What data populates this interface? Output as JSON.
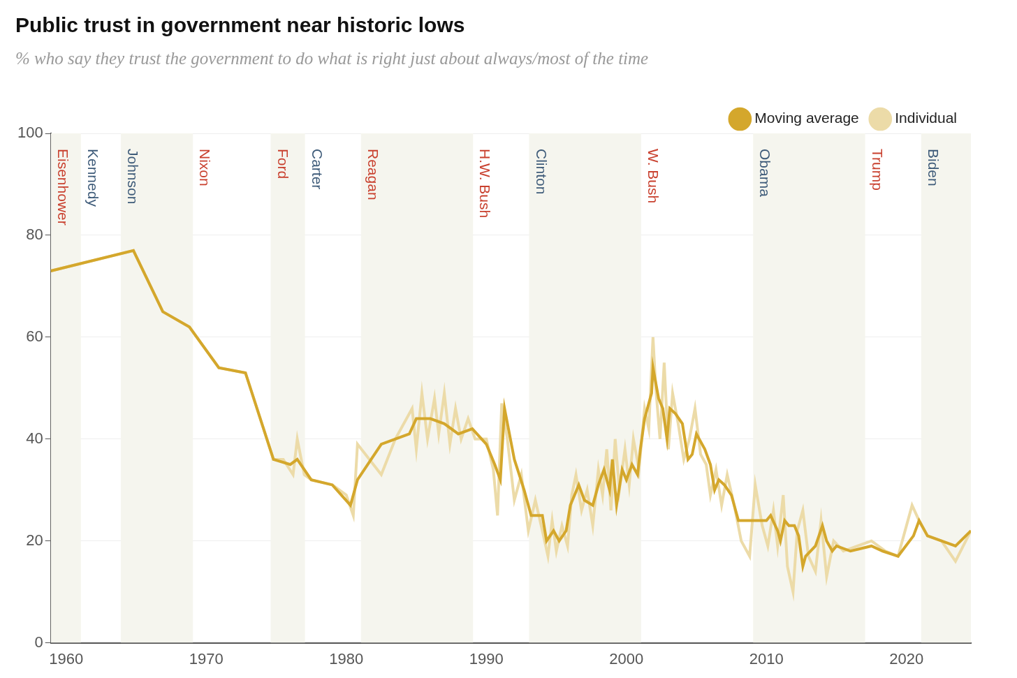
{
  "chart_data": {
    "type": "line",
    "title": "Public trust in government near historic lows",
    "subtitle": "% who say they trust the government to do what is right just about always/most of the time",
    "xlim": [
      1958.9,
      2024.6
    ],
    "xticks": [
      1960,
      1970,
      1980,
      1990,
      2000,
      2010,
      2020
    ],
    "ylim": [
      0,
      100
    ],
    "yticks": [
      0,
      20,
      40,
      60,
      80,
      100
    ],
    "grid": true,
    "legend": "top-right",
    "series": [
      {
        "name": "Moving average",
        "color": "#d4a72c",
        "x": [
          1958.9,
          1964.8,
          1966.9,
          1968.8,
          1970.9,
          1972.8,
          1974.8,
          1976.0,
          1976.5,
          1977.5,
          1979.0,
          1980.3,
          1980.8,
          1982.5,
          1984.5,
          1985.0,
          1986.0,
          1987.0,
          1988.0,
          1989.0,
          1990.0,
          1990.6,
          1991.0,
          1991.3,
          1992.0,
          1992.7,
          1993.2,
          1994.0,
          1994.3,
          1994.8,
          1995.2,
          1995.7,
          1996.0,
          1996.6,
          1997.0,
          1997.6,
          1998.0,
          1998.4,
          1998.8,
          1999.0,
          1999.3,
          1999.7,
          2000.0,
          2000.4,
          2000.8,
          2001.0,
          2001.3,
          2001.8,
          2001.9,
          2002.3,
          2002.6,
          2002.9,
          2003.1,
          2003.5,
          2004.0,
          2004.4,
          2004.7,
          2005.0,
          2005.6,
          2006.0,
          2006.3,
          2006.6,
          2007.0,
          2007.5,
          2008.0,
          2009.0,
          2010.0,
          2010.3,
          2010.8,
          2011.0,
          2011.3,
          2011.6,
          2012.0,
          2012.3,
          2012.6,
          2012.8,
          2013.5,
          2014.0,
          2014.3,
          2014.7,
          2015.0,
          2016.0,
          2017.5,
          2018.3,
          2019.4,
          2020.5,
          2020.9,
          2021.5,
          2022.5,
          2023.5,
          2024.6
        ],
        "values": [
          73,
          77,
          65,
          62,
          54,
          53,
          36,
          35,
          36,
          32,
          31,
          27,
          32,
          39,
          41,
          44,
          44,
          43,
          41,
          42,
          39,
          35,
          32,
          46,
          36,
          30,
          25,
          25,
          20,
          22,
          20,
          22,
          27,
          31,
          28,
          27,
          31,
          34,
          30,
          36,
          27,
          34,
          32,
          35,
          33,
          38,
          44,
          49,
          54,
          48,
          46,
          40,
          46,
          45,
          43,
          36,
          37,
          41,
          38,
          35,
          30,
          32,
          31,
          29,
          24,
          24,
          24,
          25,
          22,
          20,
          24,
          23,
          23,
          21,
          15,
          17,
          19,
          23,
          20,
          18,
          19,
          18,
          19,
          18,
          17,
          21,
          24,
          21,
          20,
          19,
          22
        ]
      },
      {
        "name": "Individual",
        "color": "#ecdba8",
        "x": [
          1958.9,
          1964.8,
          1966.9,
          1968.8,
          1970.9,
          1972.8,
          1974.8,
          1975.5,
          1976.2,
          1976.5,
          1977.0,
          1977.5,
          1979.0,
          1980.0,
          1980.5,
          1980.8,
          1982.5,
          1983.5,
          1984.7,
          1985.0,
          1985.4,
          1985.8,
          1986.3,
          1986.6,
          1987.0,
          1987.4,
          1987.8,
          1988.2,
          1988.7,
          1989.2,
          1990.0,
          1990.5,
          1990.8,
          1991.1,
          1991.5,
          1992.0,
          1992.5,
          1993.0,
          1993.5,
          1994.0,
          1994.4,
          1994.7,
          1995.0,
          1995.4,
          1995.8,
          1996.1,
          1996.4,
          1996.8,
          1997.2,
          1997.6,
          1998.0,
          1998.3,
          1998.6,
          1998.9,
          1999.2,
          1999.5,
          1999.9,
          2000.2,
          2000.5,
          2000.9,
          2001.3,
          2001.6,
          2001.9,
          2002.1,
          2002.4,
          2002.7,
          2003.0,
          2003.3,
          2003.7,
          2004.1,
          2004.5,
          2004.9,
          2005.3,
          2005.7,
          2006.0,
          2006.4,
          2006.8,
          2007.2,
          2007.7,
          2008.2,
          2008.8,
          2009.2,
          2009.7,
          2010.1,
          2010.5,
          2010.8,
          2011.2,
          2011.5,
          2011.9,
          2012.2,
          2012.6,
          2013.0,
          2013.5,
          2013.9,
          2014.3,
          2014.8,
          2015.5,
          2016.5,
          2017.5,
          2018.5,
          2019.4,
          2020.4,
          2020.9,
          2021.5,
          2022.5,
          2023.5,
          2024.6
        ],
        "values": [
          73,
          77,
          65,
          62,
          54,
          53,
          36,
          36,
          33,
          40,
          33,
          32,
          31,
          29,
          25,
          39,
          33,
          40,
          46,
          38,
          49,
          40,
          48,
          41,
          49,
          39,
          46,
          40,
          44,
          40,
          40,
          34,
          25,
          47,
          40,
          28,
          33,
          22,
          28,
          22,
          17,
          24,
          18,
          23,
          19,
          29,
          33,
          26,
          30,
          23,
          34,
          29,
          38,
          26,
          40,
          30,
          38,
          31,
          40,
          34,
          46,
          42,
          60,
          50,
          40,
          55,
          38,
          49,
          43,
          36,
          40,
          46,
          37,
          35,
          29,
          34,
          27,
          33,
          27,
          20,
          17,
          31,
          23,
          19,
          26,
          19,
          29,
          15,
          10,
          22,
          26,
          17,
          14,
          24,
          13,
          20,
          18,
          19,
          20,
          18,
          17,
          27,
          24,
          21,
          20,
          16,
          22
        ]
      }
    ],
    "annotations": [
      {
        "text": "Eisenhower",
        "x_start": 1958.9,
        "x_end": 1961.05,
        "color": "#c9412f"
      },
      {
        "text": "Kennedy",
        "x_start": 1961.05,
        "x_end": 1963.9,
        "color": "#3e5b79"
      },
      {
        "text": "Johnson",
        "x_start": 1963.9,
        "x_end": 1969.05,
        "color": "#3e5b79"
      },
      {
        "text": "Nixon",
        "x_start": 1969.05,
        "x_end": 1974.6,
        "color": "#c9412f"
      },
      {
        "text": "Ford",
        "x_start": 1974.6,
        "x_end": 1977.05,
        "color": "#c9412f"
      },
      {
        "text": "Carter",
        "x_start": 1977.05,
        "x_end": 1981.05,
        "color": "#3e5b79"
      },
      {
        "text": "Reagan",
        "x_start": 1981.05,
        "x_end": 1989.05,
        "color": "#c9412f"
      },
      {
        "text": "H.W. Bush",
        "x_start": 1989.05,
        "x_end": 1993.05,
        "color": "#c9412f"
      },
      {
        "text": "Clinton",
        "x_start": 1993.05,
        "x_end": 2001.05,
        "color": "#3e5b79"
      },
      {
        "text": "W. Bush",
        "x_start": 2001.05,
        "x_end": 2009.05,
        "color": "#c9412f"
      },
      {
        "text": "Obama",
        "x_start": 2009.05,
        "x_end": 2017.05,
        "color": "#3e5b79"
      },
      {
        "text": "Trump",
        "x_start": 2017.05,
        "x_end": 2021.05,
        "color": "#c9412f"
      },
      {
        "text": "Biden",
        "x_start": 2021.05,
        "x_end": 2024.6,
        "color": "#3e5b79"
      }
    ]
  }
}
